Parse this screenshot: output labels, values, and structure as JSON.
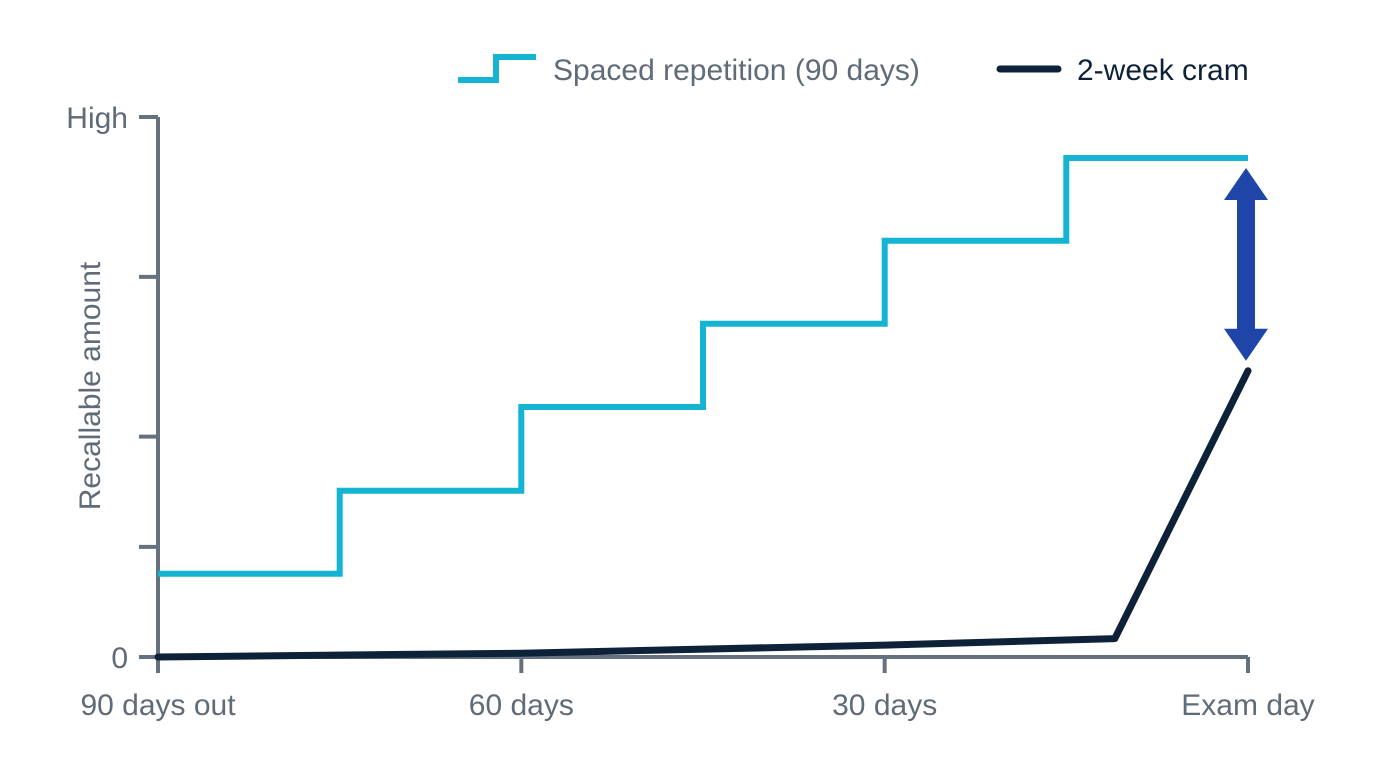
{
  "chart_data": {
    "type": "line",
    "title": "",
    "xlabel": "",
    "ylabel": "Recallable amount",
    "x_ticks": [
      {
        "x": 90,
        "label": "90 days out"
      },
      {
        "x": 60,
        "label": "60 days"
      },
      {
        "x": 30,
        "label": "30 days"
      },
      {
        "x": 0,
        "label": "Exam day"
      }
    ],
    "x_range": [
      90,
      0
    ],
    "x_unit": "days before exam",
    "y_range": [
      0,
      1
    ],
    "y_unit": "relative recallable amount (0 = none, 1 = High)",
    "y_ticks": [
      {
        "y": 0,
        "label": "0"
      },
      {
        "y": 0.204,
        "label": ""
      },
      {
        "y": 0.408,
        "label": ""
      },
      {
        "y": 0.704,
        "label": ""
      },
      {
        "y": 1,
        "label": "High"
      }
    ],
    "legend_position": "top-right",
    "series": [
      {
        "name": "Spaced repetition (90 days)",
        "style": "step",
        "color": "#14b4d2",
        "points": [
          {
            "x": 90,
            "y": 0.154
          },
          {
            "x": 75,
            "y": 0.154
          },
          {
            "x": 75,
            "y": 0.308
          },
          {
            "x": 60,
            "y": 0.308
          },
          {
            "x": 60,
            "y": 0.463
          },
          {
            "x": 45,
            "y": 0.463
          },
          {
            "x": 45,
            "y": 0.617
          },
          {
            "x": 30,
            "y": 0.617
          },
          {
            "x": 30,
            "y": 0.771
          },
          {
            "x": 15,
            "y": 0.771
          },
          {
            "x": 15,
            "y": 0.924
          },
          {
            "x": 0,
            "y": 0.924
          }
        ]
      },
      {
        "name": "2-week cram",
        "style": "line",
        "color": "#0d2238",
        "points": [
          {
            "x": 90,
            "y": 0
          },
          {
            "x": 60,
            "y": 0.007
          },
          {
            "x": 30,
            "y": 0.022
          },
          {
            "x": 11,
            "y": 0.034
          },
          {
            "x": 0,
            "y": 0.53
          }
        ]
      }
    ],
    "annotation": {
      "type": "double-arrow",
      "x": 0,
      "from_y": 0.53,
      "to_y": 0.924,
      "color": "#1f45a9"
    },
    "axis_color": "#66717e",
    "text_color": "#5f6b77"
  }
}
